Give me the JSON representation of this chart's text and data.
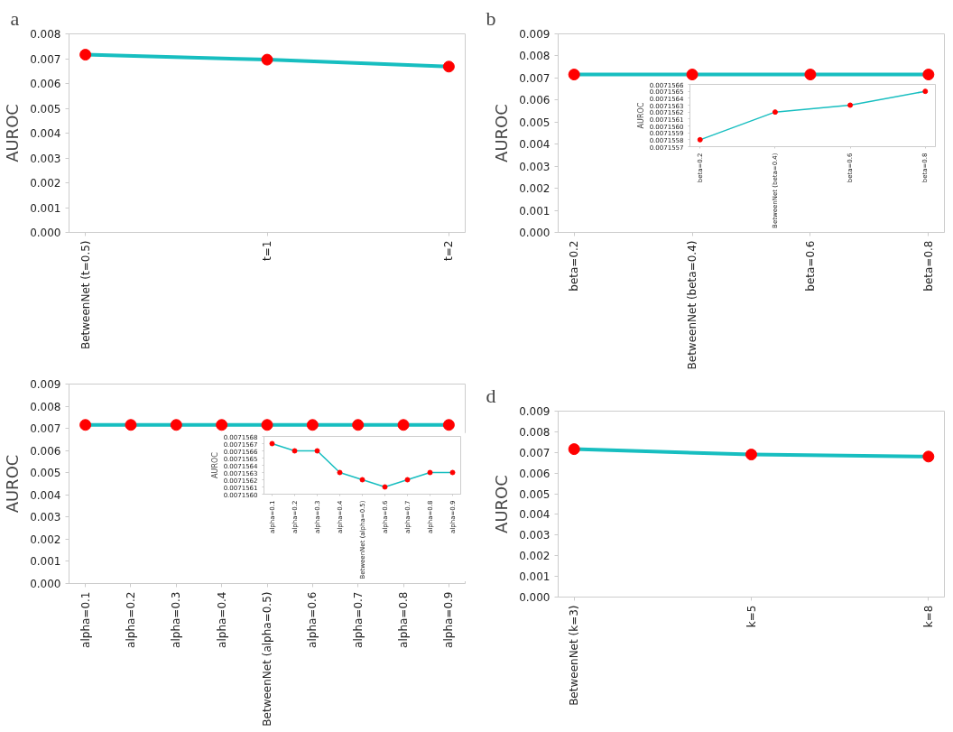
{
  "chart_data": [
    {
      "type": "line",
      "title": "a",
      "ylabel": "AUROC",
      "marker": "circle",
      "categories": [
        "BetweenNet (t=0.5)",
        "t=1",
        "t=2"
      ],
      "series": [
        {
          "color": "#17bec0",
          "colors": [
            "#ff0000",
            "#ff0000",
            "#ff0000"
          ],
          "values": [
            0.00716,
            0.00696,
            0.00668
          ]
        }
      ],
      "ylim": [
        0,
        0.008
      ],
      "yticks": [
        {
          "value": 0,
          "label": "0.000"
        },
        {
          "value": 0.001,
          "label": "0.001"
        },
        {
          "value": 0.002,
          "label": "0.002"
        },
        {
          "value": 0.003,
          "label": "0.003"
        },
        {
          "value": 0.004,
          "label": "0.004"
        },
        {
          "value": 0.005,
          "label": "0.005"
        },
        {
          "value": 0.006,
          "label": "0.006"
        },
        {
          "value": 0.007,
          "label": "0.007"
        },
        {
          "value": 0.008,
          "label": "0.008"
        }
      ]
    },
    {
      "type": "line",
      "title": "b",
      "ylabel": "AUROC",
      "marker": "circle",
      "categories": [
        "beta=0.2",
        "BetweenNet (beta=0.4)",
        "beta=0.6",
        "beta=0.8"
      ],
      "series": [
        {
          "color": "#17bec0",
          "colors": [
            "#ff0000",
            "#ff0000",
            "#ff0000",
            "#ff0000"
          ],
          "values": [
            0.0071558,
            0.0071562,
            0.0071563,
            0.0071565
          ]
        }
      ],
      "ylim": [
        0,
        0.009
      ],
      "yticks": [
        {
          "value": 0,
          "label": "0.000"
        },
        {
          "value": 0.001,
          "label": "0.001"
        },
        {
          "value": 0.002,
          "label": "0.002"
        },
        {
          "value": 0.003,
          "label": "0.003"
        },
        {
          "value": 0.004,
          "label": "0.004"
        },
        {
          "value": 0.005,
          "label": "0.005"
        },
        {
          "value": 0.006,
          "label": "0.006"
        },
        {
          "value": 0.007,
          "label": "0.007"
        },
        {
          "value": 0.008,
          "label": "0.008"
        },
        {
          "value": 0.009,
          "label": "0.009"
        }
      ]
    },
    {
      "type": "line",
      "ylabel": "AUROC",
      "marker": "circle",
      "categories": [
        "beta=0.2",
        "BetweenNet (beta=0.4)",
        "beta=0.6",
        "beta=0.8"
      ],
      "series": [
        {
          "color": "#17bec0",
          "colors": [
            "#ff0000",
            "#ff0000",
            "#ff0000",
            "#ff0000"
          ],
          "values": [
            0.0071558,
            0.0071562,
            0.0071563,
            0.0071565
          ]
        }
      ],
      "ylim": [
        0.0071557,
        0.0071566
      ],
      "yticks": [
        {
          "value": 0.0071557,
          "label": "0.0071557"
        },
        {
          "value": 0.0071558,
          "label": "0.0071558"
        },
        {
          "value": 0.0071559,
          "label": "0.0071559"
        },
        {
          "value": 0.007156,
          "label": "0.0071560"
        },
        {
          "value": 0.0071561,
          "label": "0.0071561"
        },
        {
          "value": 0.0071562,
          "label": "0.0071562"
        },
        {
          "value": 0.0071563,
          "label": "0.0071563"
        },
        {
          "value": 0.0071564,
          "label": "0.0071564"
        },
        {
          "value": 0.0071565,
          "label": "0.0071565"
        },
        {
          "value": 0.0071566,
          "label": "0.0071566"
        }
      ]
    },
    {
      "type": "line",
      "ylabel": "AUROC",
      "marker": "circle",
      "categories": [
        "alpha=0.1",
        "alpha=0.2",
        "alpha=0.3",
        "alpha=0.4",
        "BetweenNet (alpha=0.5)",
        "alpha=0.6",
        "alpha=0.7",
        "alpha=0.8",
        "alpha=0.9"
      ],
      "series": [
        {
          "color": "#17bec0",
          "colors": [
            "#ff0000",
            "#ff0000",
            "#ff0000",
            "#ff0000",
            "#ff0000",
            "#ff0000",
            "#ff0000",
            "#ff0000",
            "#ff0000"
          ],
          "values": [
            0.0071567,
            0.0071566,
            0.0071566,
            0.0071563,
            0.0071562,
            0.0071561,
            0.0071562,
            0.0071563,
            0.0071563
          ]
        }
      ],
      "ylim": [
        0,
        0.009
      ],
      "yticks": [
        {
          "value": 0,
          "label": "0.000"
        },
        {
          "value": 0.001,
          "label": "0.001"
        },
        {
          "value": 0.002,
          "label": "0.002"
        },
        {
          "value": 0.003,
          "label": "0.003"
        },
        {
          "value": 0.004,
          "label": "0.004"
        },
        {
          "value": 0.005,
          "label": "0.005"
        },
        {
          "value": 0.006,
          "label": "0.006"
        },
        {
          "value": 0.007,
          "label": "0.007"
        },
        {
          "value": 0.008,
          "label": "0.008"
        },
        {
          "value": 0.009,
          "label": "0.009"
        }
      ]
    },
    {
      "type": "line",
      "ylabel": "AUROC",
      "marker": "circle",
      "categories": [
        "alpha=0.1",
        "alpha=0.2",
        "alpha=0.3",
        "alpha=0.4",
        "BetweenNet (alpha=0.5)",
        "alpha=0.6",
        "alpha=0.7",
        "alpha=0.8",
        "alpha=0.9"
      ],
      "series": [
        {
          "color": "#17bec0",
          "colors": [
            "#ff0000",
            "#ff0000",
            "#ff0000",
            "#ff0000",
            "#ff0000",
            "#ff0000",
            "#ff0000",
            "#ff0000",
            "#ff0000"
          ],
          "values": [
            0.0071567,
            0.0071566,
            0.0071566,
            0.0071563,
            0.0071562,
            0.0071561,
            0.0071562,
            0.0071563,
            0.0071563
          ]
        }
      ],
      "ylim": [
        0.007156,
        0.0071568
      ],
      "yticks": [
        {
          "value": 0.007156,
          "label": "0.0071560"
        },
        {
          "value": 0.0071561,
          "label": "0.0071561"
        },
        {
          "value": 0.0071562,
          "label": "0.0071562"
        },
        {
          "value": 0.0071563,
          "label": "0.0071563"
        },
        {
          "value": 0.0071564,
          "label": "0.0071564"
        },
        {
          "value": 0.0071565,
          "label": "0.0071565"
        },
        {
          "value": 0.0071566,
          "label": "0.0071566"
        },
        {
          "value": 0.0071567,
          "label": "0.0071567"
        },
        {
          "value": 0.0071568,
          "label": "0.0071568"
        }
      ]
    },
    {
      "type": "line",
      "title": "d",
      "ylabel": "AUROC",
      "marker": "circle",
      "categories": [
        "BetweenNet (k=3)",
        "k=5",
        "k=8"
      ],
      "series": [
        {
          "color": "#17bec0",
          "colors": [
            "#ff0000",
            "#ff0000",
            "#ff0000"
          ],
          "values": [
            0.00716,
            0.0069,
            0.0068
          ]
        }
      ],
      "ylim": [
        0,
        0.009
      ],
      "yticks": [
        {
          "value": 0,
          "label": "0.000"
        },
        {
          "value": 0.001,
          "label": "0.001"
        },
        {
          "value": 0.002,
          "label": "0.002"
        },
        {
          "value": 0.003,
          "label": "0.003"
        },
        {
          "value": 0.004,
          "label": "0.004"
        },
        {
          "value": 0.005,
          "label": "0.005"
        },
        {
          "value": 0.006,
          "label": "0.006"
        },
        {
          "value": 0.007,
          "label": "0.007"
        },
        {
          "value": 0.008,
          "label": "0.008"
        },
        {
          "value": 0.009,
          "label": "0.009"
        }
      ]
    }
  ]
}
